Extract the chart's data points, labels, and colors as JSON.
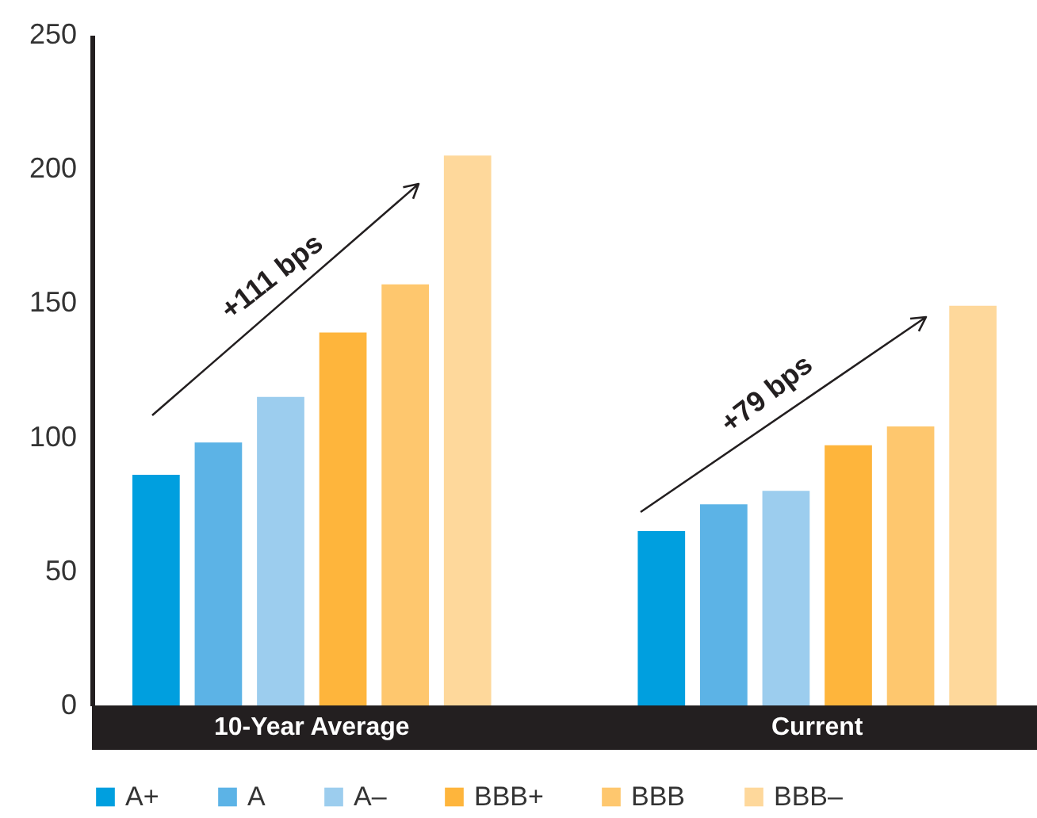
{
  "chart_data": {
    "type": "bar",
    "categories": [
      "10-Year Average",
      "Current"
    ],
    "series": [
      {
        "name": "A+",
        "color": "#009fdf",
        "values": [
          86,
          65
        ]
      },
      {
        "name": "A",
        "color": "#5cb3e6",
        "values": [
          98,
          75
        ]
      },
      {
        "name": "A–",
        "color": "#9ccdee",
        "values": [
          115,
          80
        ]
      },
      {
        "name": "BBB+",
        "color": "#feb53c",
        "values": [
          139,
          97
        ]
      },
      {
        "name": "BBB",
        "color": "#fec76e",
        "values": [
          157,
          104
        ]
      },
      {
        "name": "BBB–",
        "color": "#fed89b",
        "values": [
          205,
          149
        ]
      }
    ],
    "ylim": [
      0,
      250
    ],
    "yticks": [
      0,
      50,
      100,
      150,
      200,
      250
    ],
    "grid": false,
    "legend": "bottom",
    "annotations": [
      "+111 bps",
      "+79 bps"
    ]
  }
}
